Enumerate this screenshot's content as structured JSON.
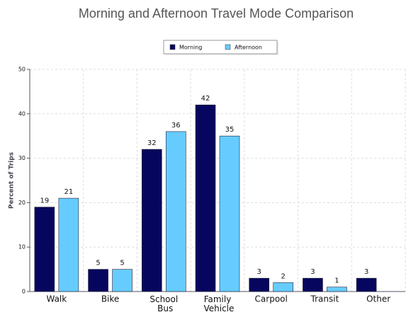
{
  "chart_data": {
    "type": "bar",
    "title": "Morning and Afternoon Travel Mode Comparison",
    "y_label": "Percent of Trips",
    "categories": [
      "Walk",
      "Bike",
      "School Bus",
      "Family Vehicle",
      "Carpool",
      "Transit",
      "Other"
    ],
    "series": [
      {
        "name": "Morning",
        "color": "#06065e",
        "values": [
          19,
          5,
          32,
          42,
          3,
          3,
          3
        ]
      },
      {
        "name": "Afternoon",
        "color": "#66ccff",
        "values": [
          21,
          5,
          36,
          35,
          2,
          1,
          null
        ]
      }
    ],
    "ylim": [
      0,
      50
    ],
    "yticks": [
      0,
      10,
      20,
      30,
      40,
      50
    ],
    "grid": true,
    "legend": "top"
  }
}
